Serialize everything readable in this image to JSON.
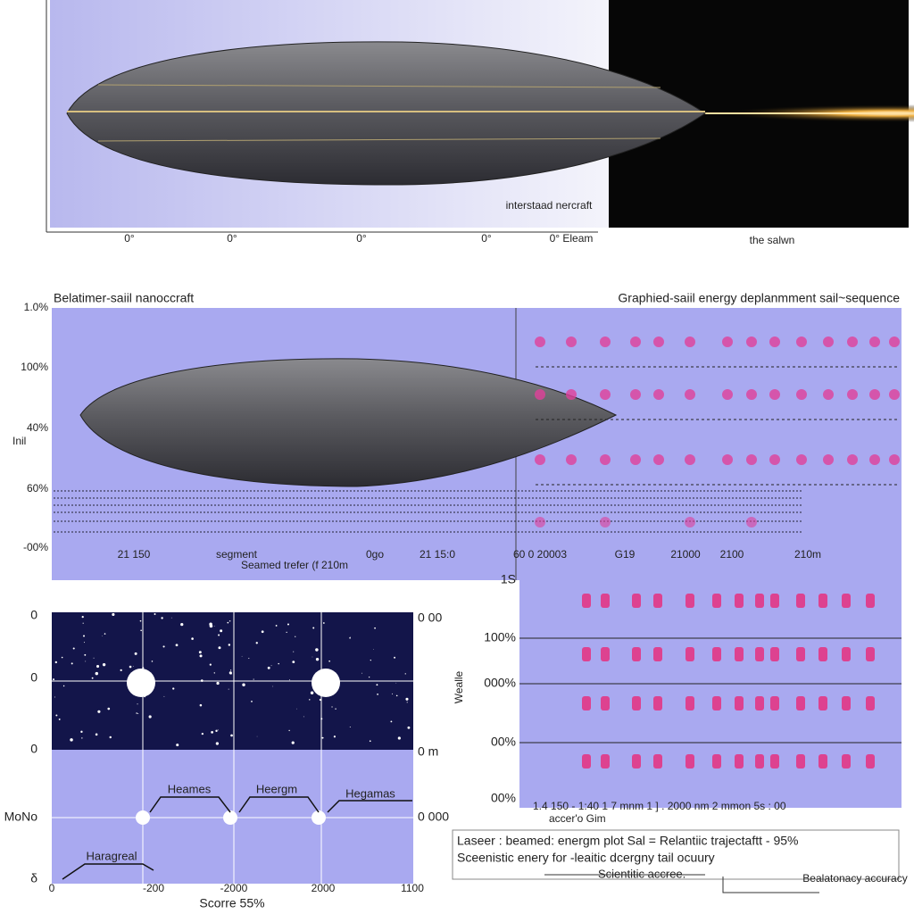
{
  "top_panel": {
    "caption": "interstaad nercraft",
    "x_labels": [
      "0°",
      "0°",
      "0°",
      "0°",
      "0° Eleam"
    ],
    "beam_label": "the salwn"
  },
  "middle_panel": {
    "title_left": "Belatimer-saiil nanoccraft",
    "title_right": "Graphied-saiil energy deplanmment sail~sequence",
    "y_title": "Inil",
    "y_labels": [
      "1.0%",
      "100%",
      "40%",
      "60%",
      "-00%"
    ],
    "x_labels": [
      "21  150",
      "segment",
      "0go",
      "21 15:0",
      "60 0 20003",
      "G19",
      "21000",
      "2100",
      "210m"
    ],
    "x_title": "Seamed trefer (f 210m"
  },
  "star_panel": {
    "y_left": [
      "0",
      "0",
      "0",
      "MoNo",
      "δ"
    ],
    "y_right": [
      "0 00",
      "0 m",
      "0 000"
    ],
    "x_labels": [
      "0",
      "-200",
      "-2000",
      "2000",
      "1100"
    ],
    "x_title": "Scorre 55%",
    "steps": [
      "Heames",
      "Heergm",
      "Hegamas",
      "Haragreal"
    ]
  },
  "right_panel": {
    "y_title": "Wealle",
    "y_labels": [
      "1S",
      "100%",
      "000%",
      "00%",
      "00%"
    ],
    "x_labels": "1.4 150 - 1:40 1 7 mnm 1 ] . 2000 nm  2  mmon 5s : 00",
    "x_title": "accer'o Gim"
  },
  "legend_box": {
    "line1": "Laseer : beamed: energm plot  Sal = Relantiic trajectaftt - 95%",
    "line2": "Sceenistic enery for -leaitic dcergny tail ocuury",
    "line3": "Scientitic accree.",
    "line4": "Bealatonacy accuracy"
  }
}
